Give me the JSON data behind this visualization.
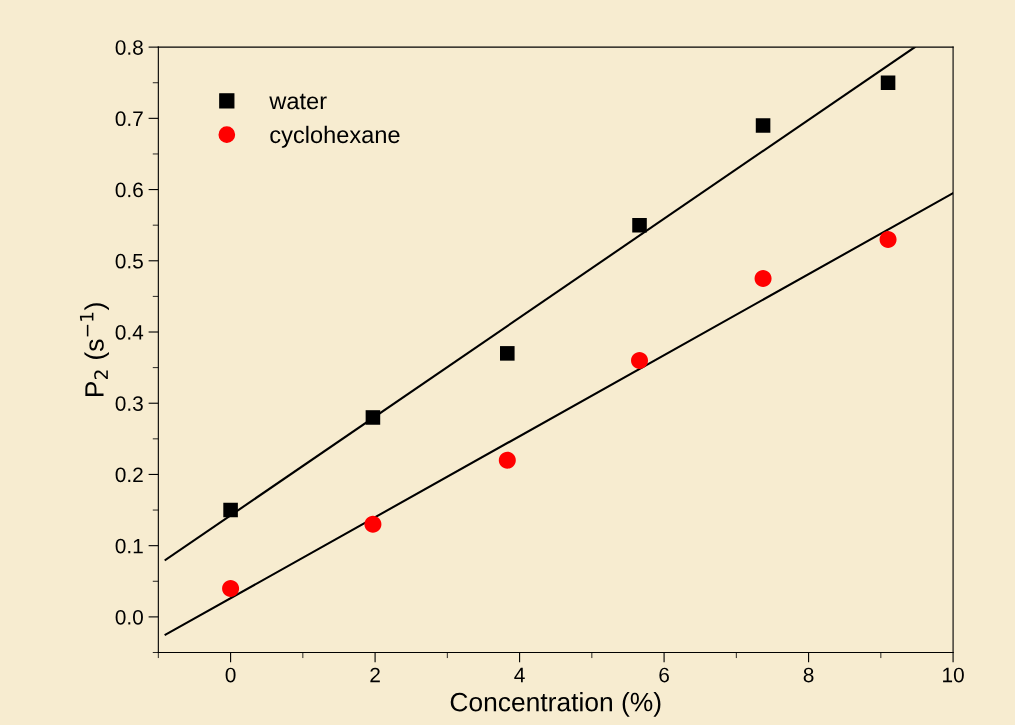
{
  "chart_data": {
    "type": "scatter",
    "xlabel": "Concentration (%)",
    "ylabel": "P$_{2}$ (s$^{−1}$)",
    "x": [
      0,
      1.97,
      3.83,
      5.66,
      7.37,
      9.1
    ],
    "series": [
      {
        "name": "water",
        "color": "#000000",
        "marker": "square",
        "values": [
          0.15,
          0.28,
          0.37,
          0.55,
          0.69,
          0.75
        ]
      },
      {
        "name": "cyclohexane",
        "color": "#ff0000",
        "marker": "circle",
        "values": [
          0.04,
          0.13,
          0.22,
          0.36,
          0.475,
          0.53
        ]
      },
      {
        "type": "line",
        "color": "#000000",
        "x": [
          -0.9,
          9.47
        ],
        "values": [
          0.08,
          0.8
        ]
      },
      {
        "type": "line",
        "color": "#000000",
        "x": [
          -0.9,
          10
        ],
        "values": [
          -0.025,
          0.595
        ]
      }
    ],
    "xlim": [
      -1,
      10
    ],
    "xticks": [
      0,
      2,
      4,
      6,
      8,
      10
    ],
    "ylim": [
      -0.05,
      0.8
    ],
    "yticks": [
      {
        "value": 0,
        "label": "0.0"
      },
      0.1,
      0.2,
      0.3,
      0.4,
      0.5,
      0.6,
      0.7,
      0.8
    ],
    "grid": false,
    "legend": "top left"
  }
}
